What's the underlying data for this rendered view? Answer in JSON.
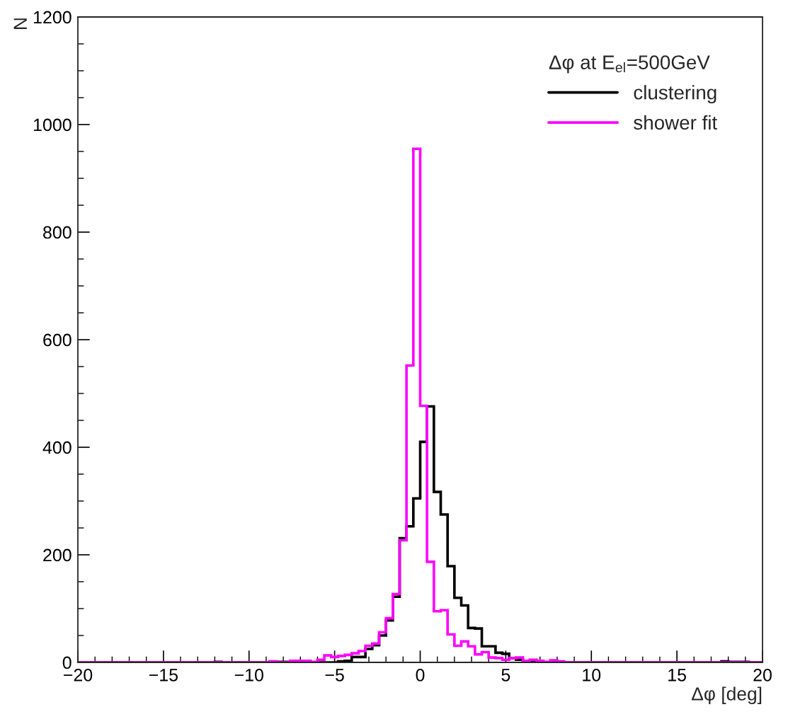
{
  "chart_data": {
    "type": "histogram",
    "xlabel": "Δφ [deg]",
    "ylabel": "N",
    "legend_title": "Δφ at E$_{el}$=500GeV",
    "bins": [
      -20,
      -19.6,
      -19.2,
      -18.8,
      -18.4,
      -18,
      -17.6,
      -17.2,
      -16.8,
      -16.4,
      -16,
      -15.6,
      -15.2,
      -14.8,
      -14.4,
      -14,
      -13.6,
      -13.2,
      -12.8,
      -12.4,
      -12,
      -11.6,
      -11.2,
      -10.8,
      -10.4,
      -10,
      -9.6,
      -9.2,
      -8.8,
      -8.4,
      -8,
      -7.6,
      -7.2,
      -6.8,
      -6.4,
      -6,
      -5.6,
      -5.2,
      -4.8,
      -4.4,
      -4,
      -3.6,
      -3.2,
      -2.8,
      -2.4,
      -2,
      -1.6,
      -1.2,
      -0.8,
      -0.4,
      0,
      0.4,
      0.8,
      1.2,
      1.6,
      2,
      2.4,
      2.8,
      3.2,
      3.6,
      4,
      4.4,
      4.8,
      5.2,
      5.6,
      6,
      6.4,
      6.8,
      7.2,
      7.6,
      8,
      8.4,
      8.8,
      9.2,
      9.6,
      10,
      10.4,
      10.8,
      11.2,
      11.6,
      12,
      12.4,
      12.8,
      13.2,
      13.6,
      14,
      14.4,
      14.8,
      15.2,
      15.6,
      16,
      16.4,
      16.8,
      17.2,
      17.6,
      18,
      18.4,
      18.8,
      19.2,
      19.6,
      20
    ],
    "series": [
      {
        "name": "clustering",
        "color": "#000000",
        "values": [
          0,
          0,
          0,
          0,
          0,
          0,
          0,
          0,
          0,
          0,
          0,
          0,
          0,
          0,
          0,
          0,
          0,
          0,
          0,
          0,
          1,
          0,
          0,
          0,
          0,
          0,
          0,
          0,
          1,
          1,
          1,
          1,
          1,
          1,
          0,
          0,
          0,
          0,
          2,
          3,
          10,
          10,
          25,
          32,
          50,
          78,
          122,
          231,
          253,
          305,
          410,
          476,
          317,
          275,
          179,
          120,
          106,
          64,
          63,
          30,
          30,
          18,
          16,
          8,
          5,
          3,
          1,
          1,
          0,
          0,
          0,
          0,
          0,
          0,
          0,
          0,
          0,
          0,
          0,
          0,
          0,
          0,
          0,
          0,
          0,
          0,
          0,
          0,
          0,
          0,
          0,
          0,
          0,
          0,
          2,
          1,
          1,
          1,
          0,
          0
        ]
      },
      {
        "name": "shower fit",
        "color": "#ff00ff",
        "values": [
          0,
          0,
          0,
          0,
          0,
          0,
          0,
          0,
          0,
          0,
          0,
          0,
          0,
          0,
          0,
          0,
          0,
          0,
          0,
          0,
          0,
          0,
          0,
          0,
          0,
          0,
          0,
          0,
          2,
          0,
          0,
          3,
          3,
          3,
          1,
          5,
          13,
          10,
          12,
          14,
          17,
          21,
          31,
          35,
          56,
          82,
          127,
          227,
          552,
          955,
          477,
          187,
          95,
          97,
          52,
          31,
          39,
          30,
          15,
          19,
          9,
          8,
          5,
          8,
          9,
          3,
          5,
          3,
          1,
          4,
          2,
          0,
          0,
          0,
          0,
          0,
          0,
          0,
          0,
          0,
          0,
          0,
          0,
          0,
          0,
          0,
          0,
          0,
          0,
          0,
          0,
          0,
          0,
          0,
          0,
          0,
          0,
          0,
          0,
          0
        ]
      }
    ],
    "xlim": [
      -20,
      20
    ],
    "xticks": [
      -20,
      -15,
      -10,
      -5,
      0,
      5,
      10,
      15,
      20
    ],
    "ylim": [
      0,
      1200
    ],
    "yticks": [
      0,
      200,
      400,
      600,
      800,
      1000,
      1200
    ],
    "grid": false,
    "legend": "top right"
  }
}
